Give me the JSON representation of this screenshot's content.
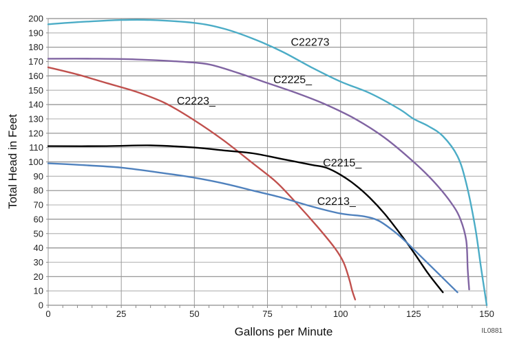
{
  "chart_data": {
    "type": "line",
    "title": "",
    "xlabel": "Gallons per Minute",
    "ylabel": "Total Head in Feet",
    "xlim": [
      0,
      150
    ],
    "ylim": [
      0,
      200
    ],
    "x_ticks": [
      "0",
      "25",
      "50",
      "75",
      "100",
      "125",
      "150"
    ],
    "y_ticks": [
      "0",
      "10",
      "20",
      "30",
      "40",
      "50",
      "60",
      "70",
      "80",
      "90",
      "100",
      "110",
      "120",
      "130",
      "140",
      "150",
      "160",
      "170",
      "180",
      "190",
      "200"
    ],
    "grid": true,
    "figure_id": "IL0881",
    "series": [
      {
        "name": "C22273",
        "color": "#4bacc6",
        "label_at": [
          83,
          181
        ],
        "points": [
          [
            0,
            196
          ],
          [
            10,
            197.5
          ],
          [
            25,
            199
          ],
          [
            35,
            199
          ],
          [
            50,
            197
          ],
          [
            60,
            193
          ],
          [
            70,
            186
          ],
          [
            80,
            177
          ],
          [
            90,
            166
          ],
          [
            100,
            156
          ],
          [
            110,
            148
          ],
          [
            120,
            137
          ],
          [
            125,
            130
          ],
          [
            130,
            125
          ],
          [
            135,
            118
          ],
          [
            140,
            104
          ],
          [
            143,
            85
          ],
          [
            146,
            55
          ],
          [
            148,
            27
          ],
          [
            150,
            0
          ]
        ]
      },
      {
        "name": "C2225_",
        "color": "#8064a2",
        "label_at": [
          77,
          155
        ],
        "points": [
          [
            0,
            172
          ],
          [
            15,
            172
          ],
          [
            30,
            171.5
          ],
          [
            45,
            170
          ],
          [
            55,
            168
          ],
          [
            65,
            162
          ],
          [
            75,
            155
          ],
          [
            85,
            148
          ],
          [
            95,
            140
          ],
          [
            105,
            130
          ],
          [
            115,
            117
          ],
          [
            125,
            100
          ],
          [
            132,
            86
          ],
          [
            138,
            71
          ],
          [
            141,
            60
          ],
          [
            143,
            45
          ],
          [
            143.5,
            25
          ],
          [
            144,
            11
          ]
        ]
      },
      {
        "name": "C2223_",
        "color": "#c0504d",
        "label_at": [
          44,
          140
        ],
        "points": [
          [
            0,
            166
          ],
          [
            10,
            161
          ],
          [
            20,
            155
          ],
          [
            30,
            149
          ],
          [
            40,
            141
          ],
          [
            50,
            129
          ],
          [
            60,
            115
          ],
          [
            70,
            99
          ],
          [
            78,
            86
          ],
          [
            85,
            71
          ],
          [
            92,
            55
          ],
          [
            98,
            40
          ],
          [
            101,
            30
          ],
          [
            103,
            18
          ],
          [
            104,
            10
          ],
          [
            105,
            4
          ]
        ]
      },
      {
        "name": "C2215_",
        "color": "#000000",
        "label_at": [
          94,
          97
        ],
        "points": [
          [
            0,
            111
          ],
          [
            20,
            111
          ],
          [
            35,
            111.5
          ],
          [
            50,
            110
          ],
          [
            60,
            108
          ],
          [
            70,
            106
          ],
          [
            80,
            102
          ],
          [
            90,
            98
          ],
          [
            95,
            96
          ],
          [
            100,
            91
          ],
          [
            105,
            84
          ],
          [
            110,
            75
          ],
          [
            115,
            64
          ],
          [
            120,
            51
          ],
          [
            125,
            37
          ],
          [
            130,
            22
          ],
          [
            135,
            9
          ]
        ]
      },
      {
        "name": "C2213_",
        "color": "#4f81bd",
        "label_at": [
          92,
          70
        ],
        "points": [
          [
            0,
            99
          ],
          [
            10,
            98
          ],
          [
            25,
            96
          ],
          [
            40,
            92
          ],
          [
            50,
            89
          ],
          [
            60,
            85
          ],
          [
            70,
            80
          ],
          [
            80,
            75
          ],
          [
            90,
            69
          ],
          [
            100,
            64
          ],
          [
            108,
            62
          ],
          [
            113,
            59
          ],
          [
            118,
            52
          ],
          [
            122,
            45
          ],
          [
            128,
            33
          ],
          [
            134,
            21
          ],
          [
            140,
            9
          ]
        ]
      }
    ]
  }
}
